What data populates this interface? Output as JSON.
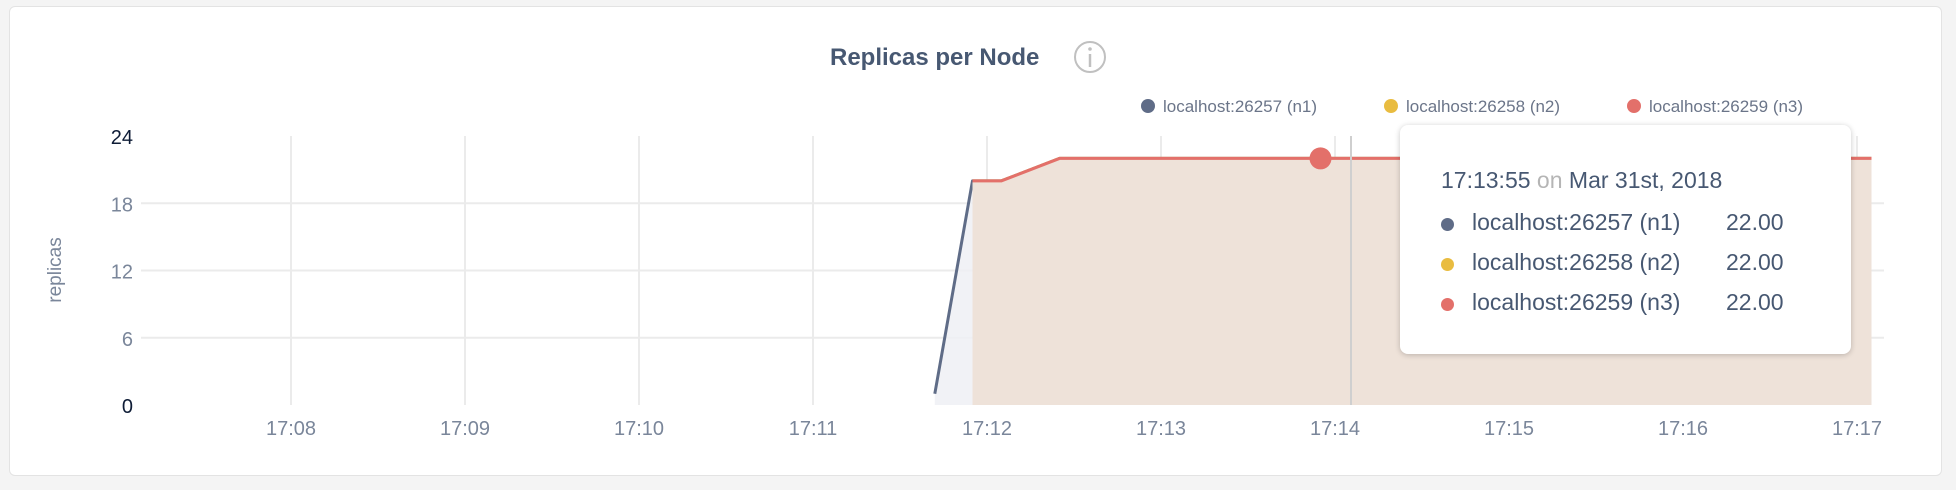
{
  "chart_data": {
    "type": "area",
    "title": "Replicas per Node",
    "ylabel": "replicas",
    "xlabel": "",
    "ylim": [
      0,
      24
    ],
    "yticks": [
      "0",
      "6",
      "12",
      "18",
      "24"
    ],
    "xlim": [
      "17:06:50",
      "17:17:05"
    ],
    "xticks": [
      "17:08",
      "17:09",
      "17:10",
      "17:11",
      "17:12",
      "17:13",
      "17:14",
      "17:15",
      "17:16",
      "17:17"
    ],
    "grid": true,
    "legend_position": "top-right",
    "series": [
      {
        "name": "localhost:26257 (n1)",
        "color": "#5f6c87",
        "fill": "#eff0f4",
        "x": [
          "17:11:42",
          "17:11:55",
          "17:12:05",
          "17:12:25",
          "17:17:05"
        ],
        "y": [
          1,
          20,
          20,
          22,
          22
        ]
      },
      {
        "name": "localhost:26258 (n2)",
        "color": "#e9bc40",
        "fill": "#f7ecd2",
        "x": [
          "17:11:55",
          "17:12:05",
          "17:12:25",
          "17:17:05"
        ],
        "y": [
          20,
          20,
          22,
          22
        ]
      },
      {
        "name": "localhost:26259 (n3)",
        "color": "#e3706a",
        "fill": "#ecdfd9",
        "x": [
          "17:11:55",
          "17:12:05",
          "17:12:25",
          "17:17:05"
        ],
        "y": [
          20,
          20,
          22,
          22
        ]
      }
    ],
    "hover": {
      "x": "17:13:55",
      "y": 22
    }
  },
  "info_icon": "info-circle-icon",
  "tooltip": {
    "time": "17:13:55",
    "on": "on",
    "date": "Mar 31st, 2018",
    "rows": [
      {
        "label": "localhost:26257 (n1)",
        "value": "22.00",
        "color": "#5f6c87"
      },
      {
        "label": "localhost:26258 (n2)",
        "value": "22.00",
        "color": "#e9bc40"
      },
      {
        "label": "localhost:26259 (n3)",
        "value": "22.00",
        "color": "#e3706a"
      }
    ]
  }
}
